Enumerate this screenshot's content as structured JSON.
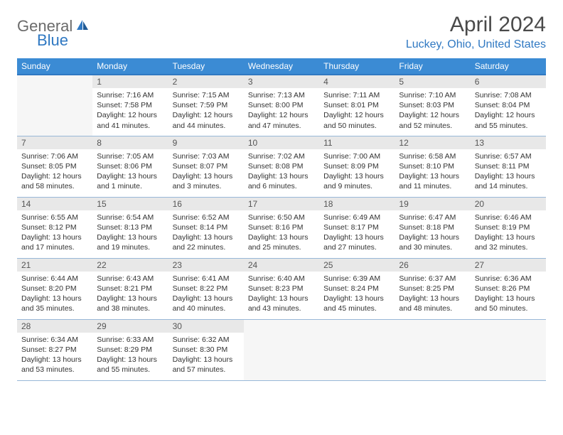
{
  "logo": {
    "general": "General",
    "blue": "Blue"
  },
  "title": "April 2024",
  "location": "Luckey, Ohio, United States",
  "colors": {
    "header_bg": "#3b8bd4",
    "header_border": "#2f78c2",
    "row_border": "#98b8d8",
    "daynum_bg": "#e8e8e8",
    "empty_bg": "#f6f6f6",
    "text": "#333333",
    "title_text": "#4a4a4a",
    "accent": "#2f78c2",
    "logo_gray": "#6b6b6b"
  },
  "fonts": {
    "title_pt": 30,
    "location_pt": 16,
    "header_pt": 12,
    "daynum_pt": 12,
    "body_pt": 10.5
  },
  "days_of_week": [
    "Sunday",
    "Monday",
    "Tuesday",
    "Wednesday",
    "Thursday",
    "Friday",
    "Saturday"
  ],
  "weeks": [
    [
      null,
      {
        "n": "1",
        "sr": "7:16 AM",
        "ss": "7:58 PM",
        "dl": "12 hours and 41 minutes."
      },
      {
        "n": "2",
        "sr": "7:15 AM",
        "ss": "7:59 PM",
        "dl": "12 hours and 44 minutes."
      },
      {
        "n": "3",
        "sr": "7:13 AM",
        "ss": "8:00 PM",
        "dl": "12 hours and 47 minutes."
      },
      {
        "n": "4",
        "sr": "7:11 AM",
        "ss": "8:01 PM",
        "dl": "12 hours and 50 minutes."
      },
      {
        "n": "5",
        "sr": "7:10 AM",
        "ss": "8:03 PM",
        "dl": "12 hours and 52 minutes."
      },
      {
        "n": "6",
        "sr": "7:08 AM",
        "ss": "8:04 PM",
        "dl": "12 hours and 55 minutes."
      }
    ],
    [
      {
        "n": "7",
        "sr": "7:06 AM",
        "ss": "8:05 PM",
        "dl": "12 hours and 58 minutes."
      },
      {
        "n": "8",
        "sr": "7:05 AM",
        "ss": "8:06 PM",
        "dl": "13 hours and 1 minute."
      },
      {
        "n": "9",
        "sr": "7:03 AM",
        "ss": "8:07 PM",
        "dl": "13 hours and 3 minutes."
      },
      {
        "n": "10",
        "sr": "7:02 AM",
        "ss": "8:08 PM",
        "dl": "13 hours and 6 minutes."
      },
      {
        "n": "11",
        "sr": "7:00 AM",
        "ss": "8:09 PM",
        "dl": "13 hours and 9 minutes."
      },
      {
        "n": "12",
        "sr": "6:58 AM",
        "ss": "8:10 PM",
        "dl": "13 hours and 11 minutes."
      },
      {
        "n": "13",
        "sr": "6:57 AM",
        "ss": "8:11 PM",
        "dl": "13 hours and 14 minutes."
      }
    ],
    [
      {
        "n": "14",
        "sr": "6:55 AM",
        "ss": "8:12 PM",
        "dl": "13 hours and 17 minutes."
      },
      {
        "n": "15",
        "sr": "6:54 AM",
        "ss": "8:13 PM",
        "dl": "13 hours and 19 minutes."
      },
      {
        "n": "16",
        "sr": "6:52 AM",
        "ss": "8:14 PM",
        "dl": "13 hours and 22 minutes."
      },
      {
        "n": "17",
        "sr": "6:50 AM",
        "ss": "8:16 PM",
        "dl": "13 hours and 25 minutes."
      },
      {
        "n": "18",
        "sr": "6:49 AM",
        "ss": "8:17 PM",
        "dl": "13 hours and 27 minutes."
      },
      {
        "n": "19",
        "sr": "6:47 AM",
        "ss": "8:18 PM",
        "dl": "13 hours and 30 minutes."
      },
      {
        "n": "20",
        "sr": "6:46 AM",
        "ss": "8:19 PM",
        "dl": "13 hours and 32 minutes."
      }
    ],
    [
      {
        "n": "21",
        "sr": "6:44 AM",
        "ss": "8:20 PM",
        "dl": "13 hours and 35 minutes."
      },
      {
        "n": "22",
        "sr": "6:43 AM",
        "ss": "8:21 PM",
        "dl": "13 hours and 38 minutes."
      },
      {
        "n": "23",
        "sr": "6:41 AM",
        "ss": "8:22 PM",
        "dl": "13 hours and 40 minutes."
      },
      {
        "n": "24",
        "sr": "6:40 AM",
        "ss": "8:23 PM",
        "dl": "13 hours and 43 minutes."
      },
      {
        "n": "25",
        "sr": "6:39 AM",
        "ss": "8:24 PM",
        "dl": "13 hours and 45 minutes."
      },
      {
        "n": "26",
        "sr": "6:37 AM",
        "ss": "8:25 PM",
        "dl": "13 hours and 48 minutes."
      },
      {
        "n": "27",
        "sr": "6:36 AM",
        "ss": "8:26 PM",
        "dl": "13 hours and 50 minutes."
      }
    ],
    [
      {
        "n": "28",
        "sr": "6:34 AM",
        "ss": "8:27 PM",
        "dl": "13 hours and 53 minutes."
      },
      {
        "n": "29",
        "sr": "6:33 AM",
        "ss": "8:29 PM",
        "dl": "13 hours and 55 minutes."
      },
      {
        "n": "30",
        "sr": "6:32 AM",
        "ss": "8:30 PM",
        "dl": "13 hours and 57 minutes."
      },
      null,
      null,
      null,
      null
    ]
  ],
  "labels": {
    "sunrise": "Sunrise:",
    "sunset": "Sunset:",
    "daylight": "Daylight:"
  }
}
